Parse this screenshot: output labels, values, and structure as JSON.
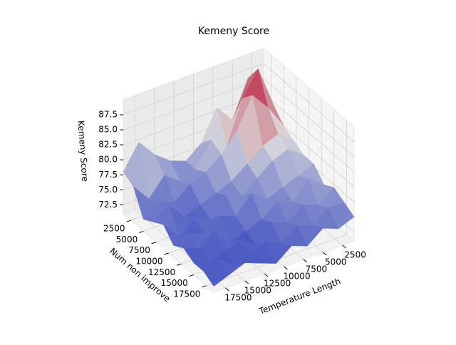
{
  "chart_data": {
    "type": "surface3d",
    "title": "Kemeny Score",
    "x_label": "Temperature Length",
    "y_label": "Num non improve",
    "z_label": "Kemeny Score",
    "colormap": "coolwarm",
    "x": [
      1000,
      3000,
      5000,
      7000,
      9000,
      11000,
      13000,
      15000,
      17000,
      19000
    ],
    "y": [
      1000,
      3000,
      5000,
      7000,
      9000,
      11000,
      13000,
      15000,
      17000,
      19000
    ],
    "z": [
      [
        84,
        86,
        80,
        83,
        78,
        76,
        77,
        79,
        82,
        78
      ],
      [
        82,
        89,
        85,
        78,
        80,
        76,
        75,
        77,
        74,
        77
      ],
      [
        80,
        84,
        87,
        82,
        79,
        77,
        76,
        74,
        75,
        73
      ],
      [
        79,
        81,
        80,
        78,
        76,
        75,
        74,
        73,
        76,
        74
      ],
      [
        78,
        80,
        79,
        77,
        75,
        76,
        73,
        74,
        72,
        75
      ],
      [
        78,
        77,
        76,
        75,
        77,
        74,
        75,
        73,
        74,
        73
      ],
      [
        76,
        78,
        75,
        76,
        74,
        73,
        72,
        75,
        73,
        74
      ],
      [
        77,
        75,
        76,
        74,
        75,
        72,
        74,
        73,
        72,
        73
      ],
      [
        76,
        76,
        74,
        75,
        73,
        74,
        73,
        72,
        74,
        73
      ],
      [
        75,
        74,
        75,
        73,
        74,
        72,
        73,
        74,
        73,
        72
      ]
    ],
    "xlim": [
      1000,
      19000
    ],
    "ylim": [
      1000,
      19000
    ],
    "zlim": [
      71,
      90
    ],
    "xticks": [
      2500,
      5000,
      7500,
      10000,
      12500,
      15000,
      17500
    ],
    "yticks": [
      2500,
      5000,
      7500,
      10000,
      12500,
      15000,
      17500
    ],
    "zticks": [
      72.5,
      {
        "value": 75,
        "label": "75.0"
      },
      77.5,
      {
        "value": 80,
        "label": "80.0"
      },
      82.5,
      {
        "value": 85,
        "label": "85.0"
      },
      87.5
    ],
    "grid": true
  }
}
